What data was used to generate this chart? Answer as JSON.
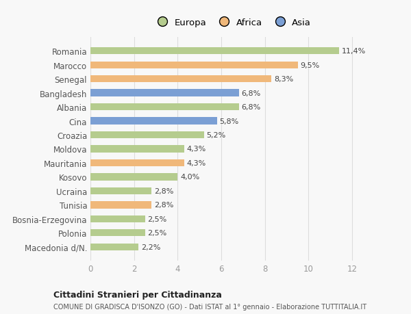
{
  "categories": [
    "Macedonia d/N.",
    "Polonia",
    "Bosnia-Erzegovina",
    "Tunisia",
    "Ucraina",
    "Kosovo",
    "Mauritania",
    "Moldova",
    "Croazia",
    "Cina",
    "Albania",
    "Bangladesh",
    "Senegal",
    "Marocco",
    "Romania"
  ],
  "values": [
    2.2,
    2.5,
    2.5,
    2.8,
    2.8,
    4.0,
    4.3,
    4.3,
    5.2,
    5.8,
    6.8,
    6.8,
    8.3,
    9.5,
    11.4
  ],
  "labels": [
    "2,2%",
    "2,5%",
    "2,5%",
    "2,8%",
    "2,8%",
    "4,0%",
    "4,3%",
    "4,3%",
    "5,2%",
    "5,8%",
    "6,8%",
    "6,8%",
    "8,3%",
    "9,5%",
    "11,4%"
  ],
  "continents": [
    "Europa",
    "Europa",
    "Europa",
    "Africa",
    "Europa",
    "Europa",
    "Africa",
    "Europa",
    "Europa",
    "Asia",
    "Europa",
    "Asia",
    "Africa",
    "Africa",
    "Europa"
  ],
  "colors": {
    "Europa": "#b5cc8e",
    "Africa": "#f0b87a",
    "Asia": "#7b9fd4"
  },
  "legend_colors": {
    "Europa": "#b5cc8e",
    "Africa": "#f0b87a",
    "Asia": "#7b9fd4"
  },
  "title_bold": "Cittadini Stranieri per Cittadinanza",
  "title_sub": "COMUNE DI GRADISCA D'ISONZO (GO) - Dati ISTAT al 1° gennaio - Elaborazione TUTTITALIA.IT",
  "xlim": [
    0,
    13
  ],
  "xticks": [
    0,
    2,
    4,
    6,
    8,
    10,
    12
  ],
  "background_color": "#f8f8f8",
  "grid_color": "#dddddd",
  "bar_height": 0.5
}
